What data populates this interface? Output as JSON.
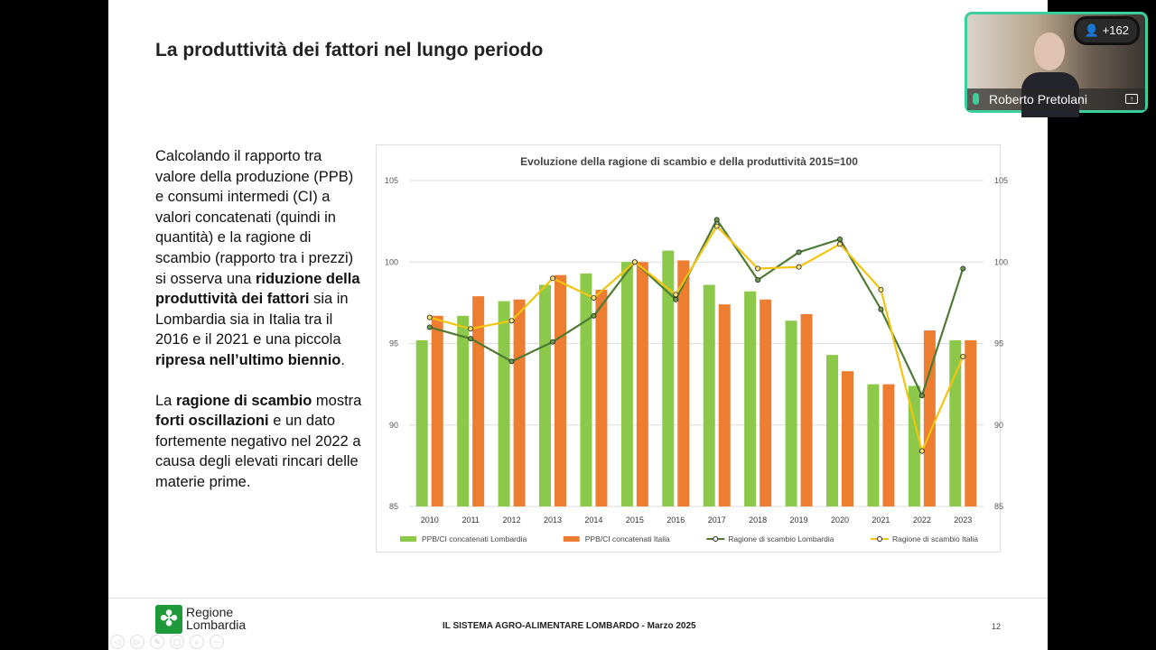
{
  "slide": {
    "title": "La produttività dei fattori nel lungo periodo",
    "paragraph1": [
      {
        "t": "Calcolando il rapporto tra valore della produzione (PPB) e consumi intermedi (CI) a valori concatenati (quindi in quantità) e la ragione di scambio (rapporto tra i prezzi) si osserva una ",
        "b": false
      },
      {
        "t": "riduzione della produttività dei fattori",
        "b": true
      },
      {
        "t": " sia in Lombardia sia in Italia tra il 2016 e il 2021 e una piccola ",
        "b": false
      },
      {
        "t": "ripresa nell’ultimo biennio",
        "b": true
      },
      {
        "t": ".",
        "b": false
      }
    ],
    "paragraph2": [
      {
        "t": "La ",
        "b": false
      },
      {
        "t": "ragione di scambio",
        "b": true
      },
      {
        "t": " mostra ",
        "b": false
      },
      {
        "t": "forti oscillazioni",
        "b": true
      },
      {
        "t": " e un dato fortemente negativo nel 2022 a causa degli elevati rincari delle materie prime.",
        "b": false
      }
    ],
    "footer": "IL SISTEMA AGRO-ALIMENTARE LOMBARDO - Marzo 2025",
    "page": "12",
    "logo": "Regione Lombardia"
  },
  "video": {
    "participant": "Roberto Pretolani",
    "count": "+162"
  },
  "chart_data": {
    "type": "bar+line",
    "title": "Evoluzione della ragione di scambio e della produttività 2015=100",
    "categories": [
      "2010",
      "2011",
      "2012",
      "2013",
      "2014",
      "2015",
      "2016",
      "2017",
      "2018",
      "2019",
      "2020",
      "2021",
      "2022",
      "2023"
    ],
    "ylim": [
      85,
      105
    ],
    "yticks": [
      85,
      90,
      95,
      100,
      105
    ],
    "secondary_yticks": [
      85,
      90,
      95,
      100,
      105
    ],
    "grid": true,
    "legend": "bottom",
    "series": [
      {
        "name": "PPB/CI concatenati Lombardia",
        "kind": "bar",
        "color": "#8cc94a",
        "values": [
          95.2,
          96.7,
          97.6,
          98.6,
          99.3,
          100,
          100.7,
          98.6,
          98.2,
          96.4,
          94.3,
          92.5,
          92.4,
          95.2
        ]
      },
      {
        "name": "PPB/CI concatenati Italia",
        "kind": "bar",
        "color": "#ed7d31",
        "values": [
          96.7,
          97.9,
          97.7,
          99.2,
          98.3,
          100,
          100.1,
          97.4,
          97.7,
          96.8,
          93.3,
          92.5,
          95.8,
          95.2
        ]
      },
      {
        "name": "Ragione di scambio Lombardia",
        "kind": "line",
        "color": "#4e7a34",
        "values": [
          96.0,
          95.3,
          93.9,
          95.1,
          96.7,
          100,
          97.7,
          102.6,
          98.9,
          100.6,
          101.4,
          97.1,
          91.8,
          99.6
        ]
      },
      {
        "name": "Ragione di scambio Italia",
        "kind": "line",
        "color": "#f2c40f",
        "values": [
          96.6,
          95.9,
          96.4,
          99.0,
          97.8,
          100,
          98.0,
          102.2,
          99.6,
          99.7,
          101.1,
          98.3,
          88.4,
          94.2
        ]
      }
    ]
  }
}
